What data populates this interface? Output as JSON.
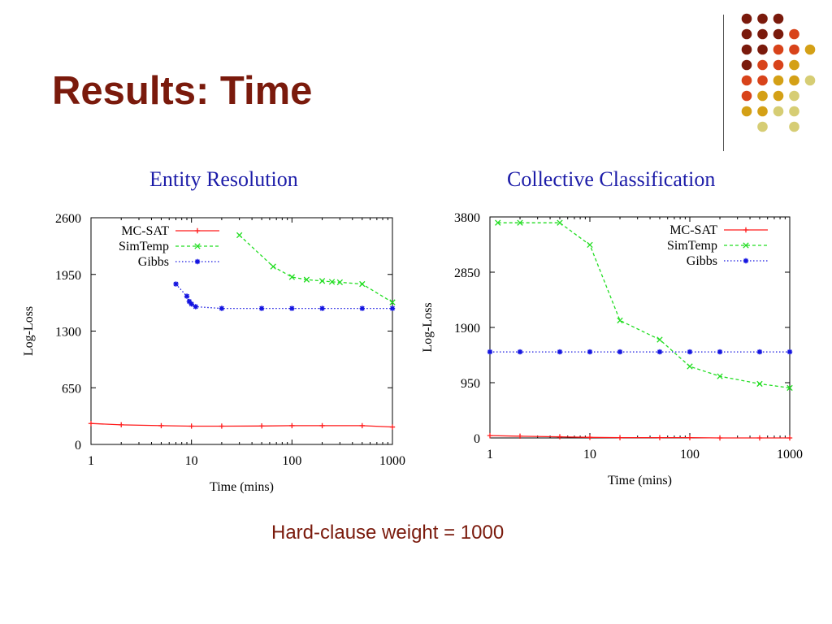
{
  "slide": {
    "title": "Results: Time",
    "caption": "Hard-clause weight = 1000"
  },
  "colors": {
    "title": "#7a1a0c",
    "chart_title": "#1c1ca8",
    "mc_sat": "#ff1a1a",
    "simtemp": "#22dd22",
    "gibbs": "#1414e0",
    "dot_palette": [
      "#7a1a0c",
      "#d8431a",
      "#d4a016",
      "#d6cd74"
    ]
  },
  "decoration": {
    "dot_grid": [
      [
        0,
        0,
        0,
        -1
      ],
      [
        0,
        0,
        0,
        1
      ],
      [
        0,
        0,
        1,
        1,
        2
      ],
      [
        0,
        1,
        1,
        2
      ],
      [
        1,
        1,
        2,
        2,
        3
      ],
      [
        1,
        2,
        2,
        3
      ],
      [
        2,
        2,
        3,
        3
      ],
      [
        -1,
        3,
        -1,
        3
      ]
    ]
  },
  "chart_data": [
    {
      "type": "line",
      "title": "Entity Resolution",
      "xlabel": "Time (mins)",
      "ylabel": "Log-Loss",
      "xscale": "log",
      "xlim": [
        1,
        1000
      ],
      "ylim": [
        0,
        2600
      ],
      "xticks": [
        1,
        10,
        100,
        1000
      ],
      "xtick_labels": [
        "1",
        "10",
        "100",
        "1000"
      ],
      "yticks": [
        0,
        650,
        1300,
        1950,
        2600
      ],
      "ytick_labels": [
        "0",
        "650",
        "1300",
        "1950",
        "2600"
      ],
      "grid": false,
      "legend_position": "top-left",
      "series": [
        {
          "name": "MC-SAT",
          "style": "solid",
          "marker": "plus",
          "x": [
            1,
            2,
            5,
            10,
            20,
            50,
            100,
            200,
            500,
            1000
          ],
          "y": [
            240,
            225,
            215,
            210,
            210,
            212,
            215,
            215,
            215,
            200
          ]
        },
        {
          "name": "SimTemp",
          "style": "dashed",
          "marker": "x",
          "x": [
            30,
            65,
            100,
            140,
            200,
            250,
            300,
            500,
            1000
          ],
          "y": [
            2400,
            2040,
            1920,
            1890,
            1875,
            1865,
            1860,
            1840,
            1630
          ]
        },
        {
          "name": "Gibbs",
          "style": "dotted",
          "marker": "star",
          "x": [
            7,
            9,
            9.5,
            10,
            11,
            20,
            50,
            100,
            200,
            500,
            1000
          ],
          "y": [
            1840,
            1700,
            1640,
            1610,
            1580,
            1560,
            1560,
            1560,
            1560,
            1560,
            1560
          ]
        }
      ]
    },
    {
      "type": "line",
      "title": "Collective Classification",
      "xlabel": "Time (mins)",
      "ylabel": "Log-Loss",
      "xscale": "log",
      "xlim": [
        1,
        1000
      ],
      "ylim": [
        0,
        3800
      ],
      "xticks": [
        1,
        10,
        100,
        1000
      ],
      "xtick_labels": [
        "1",
        "10",
        "100",
        "1000"
      ],
      "yticks": [
        0,
        950,
        1900,
        2850,
        3800
      ],
      "ytick_labels": [
        "0",
        "950",
        "1900",
        "2850",
        "3800"
      ],
      "grid": false,
      "legend_position": "top-right",
      "series": [
        {
          "name": "MC-SAT",
          "style": "solid",
          "marker": "plus",
          "x": [
            1,
            2,
            5,
            10,
            20,
            50,
            100,
            200,
            500,
            1000
          ],
          "y": [
            40,
            30,
            20,
            10,
            5,
            5,
            5,
            0,
            0,
            0
          ]
        },
        {
          "name": "SimTemp",
          "style": "dashed",
          "marker": "x",
          "x": [
            1.2,
            2,
            5,
            10,
            20,
            50,
            100,
            200,
            500,
            1000
          ],
          "y": [
            3700,
            3700,
            3700,
            3320,
            2020,
            1690,
            1230,
            1060,
            930,
            860
          ]
        },
        {
          "name": "Gibbs",
          "style": "dotted",
          "marker": "star",
          "x": [
            1,
            2,
            5,
            10,
            20,
            50,
            100,
            200,
            500,
            1000
          ],
          "y": [
            1480,
            1480,
            1480,
            1480,
            1480,
            1480,
            1480,
            1480,
            1480,
            1480
          ]
        }
      ]
    }
  ]
}
